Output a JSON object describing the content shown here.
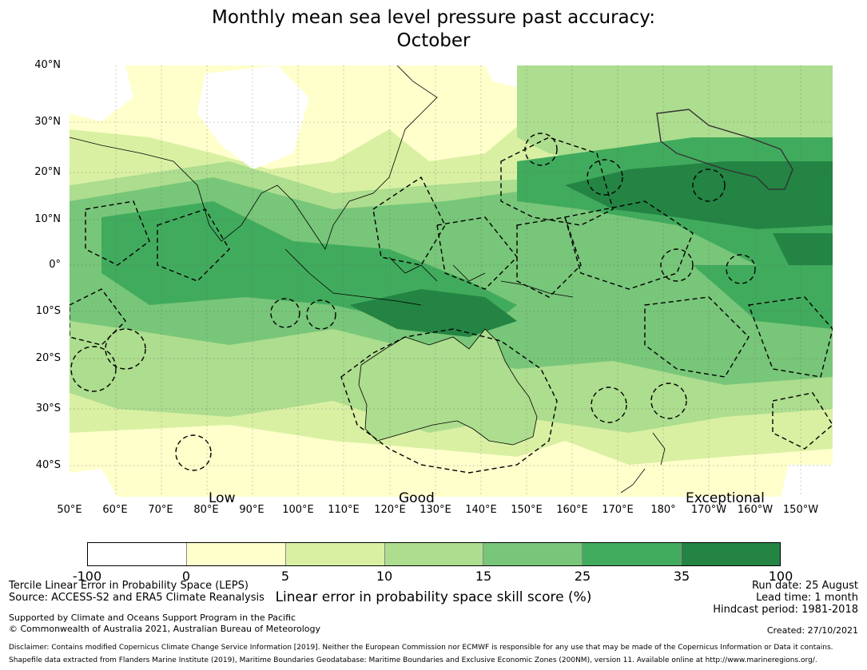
{
  "title": {
    "line1": "Monthly mean sea level pressure past accuracy:",
    "line2": "October"
  },
  "map": {
    "lat_labels": [
      "40°N",
      "30°N",
      "20°N",
      "10°N",
      "0°",
      "10°S",
      "20°S",
      "30°S",
      "40°S"
    ],
    "lon_labels": [
      "50°E",
      "60°E",
      "70°E",
      "80°E",
      "90°E",
      "100°E",
      "110°E",
      "120°E",
      "130°E",
      "140°E",
      "150°E",
      "160°E",
      "170°E",
      "180°",
      "170°W",
      "160°W",
      "150°W"
    ],
    "skill_labels": [
      "Low",
      "Good",
      "Exceptional"
    ],
    "colors": {
      "white": "#ffffff",
      "light_yellow": "#ffffcc",
      "yellow_green": "#d9f0a3",
      "light_green": "#addd8e",
      "green": "#78c679",
      "mid_green": "#41ab5d",
      "dark_green": "#238443"
    }
  },
  "colorbar": {
    "ticks": [
      "-100",
      "0",
      "5",
      "10",
      "15",
      "25",
      "35",
      "100"
    ],
    "colors": [
      "#ffffff",
      "#ffffcc",
      "#d9f0a3",
      "#addd8e",
      "#78c679",
      "#41ab5d",
      "#238443"
    ],
    "label": "Linear error in probability space skill score (%)"
  },
  "footer": {
    "left1": "Tercile Linear Error in Probability Space (LEPS)",
    "left2": "Source: ACCESS-S2 and ERA5 Climate Reanalysis",
    "support1": "Supported by Climate and Oceans Support Program in the Pacific",
    "support2": "© Commonwealth of Australia 2021, Australian Bureau of Meteorology",
    "right1": "Run date: 25 August",
    "right2": "Lead time: 1 month",
    "right3": "Hindcast period: 1981-2018",
    "created": "Created: 27/10/2021",
    "disclaimer1": "Disclaimer: Contains modified Copernicus Climate Change Service Information [2019]. Neither the European Commission nor ECMWF is responsible for any use that may be made of the Copernicus Information or Data it contains.",
    "disclaimer2": "Shapefile data extracted from Flanders Marine Institute (2019), Maritime Boundaries Geodatabase: Maritime Boundaries and Exclusive Economic Zones (200NM), version 11. Available online at http://www.marineregions.org/."
  }
}
